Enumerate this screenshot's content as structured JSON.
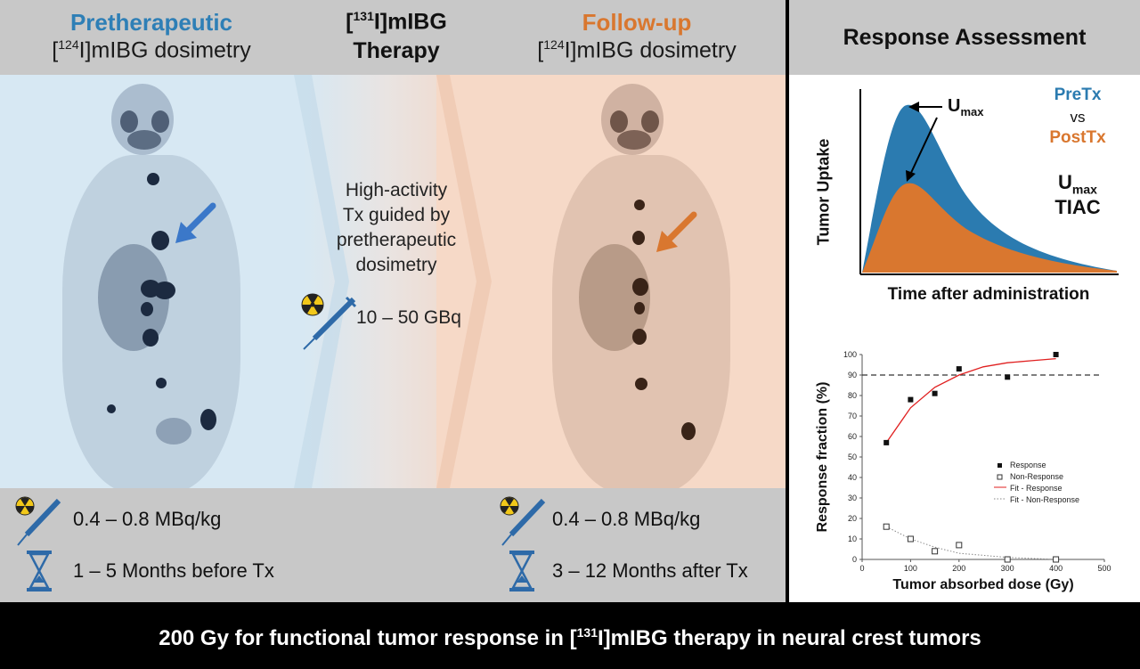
{
  "left_header": {
    "pre_title": "Pretherapeutic",
    "pre_sub_prefix": "[",
    "pre_sub_iso": "124",
    "pre_sub_rest": "I]mIBG dosimetry",
    "therapy_prefix": "[",
    "therapy_iso": "131",
    "therapy_rest": "I]mIBG",
    "therapy_line2": "Therapy",
    "follow_title": "Follow-up",
    "follow_sub_prefix": "[",
    "follow_sub_iso": "124",
    "follow_sub_rest": "I]mIBG dosimetry"
  },
  "center": {
    "line1": "High-activity",
    "line2": "Tx guided by",
    "line3": "pretherapeutic",
    "line4": "dosimetry",
    "activity": "10 – 50 GBq"
  },
  "pre_info": {
    "dose": "0.4 – 0.8 MBq/kg",
    "timing": "1 – 5 Months before Tx"
  },
  "follow_info": {
    "dose": "0.4 – 0.8 MBq/kg",
    "timing": "3 – 12 Months after Tx"
  },
  "right": {
    "title": "Response Assessment",
    "curve": {
      "ylabel": "Tumor Uptake",
      "xlabel": "Time after administration",
      "umax_label": "U",
      "umax_sub": "max",
      "pretx": "PreTx",
      "vs": "vs",
      "posttx": "PostTx",
      "umax2_label": "U",
      "umax2_sub": "max",
      "tiac": "TIAC"
    }
  },
  "footer": {
    "prefix": "200 Gy for functional tumor response in [",
    "iso": "131",
    "rest": "I]mIBG therapy in neural crest tumors"
  },
  "colors": {
    "pre_blue": "#2e7fb6",
    "follow_orange": "#d9772f",
    "curve_blue": "#2b7bb0",
    "curve_orange": "#d9772f"
  },
  "icons": [
    "radiation-syringe-icon",
    "hourglass-icon",
    "blue-arrow-icon",
    "orange-arrow-icon"
  ],
  "chart_data": {
    "type": "scatter",
    "xlabel": "Tumor absorbed dose (Gy)",
    "ylabel": "Response fraction (%)",
    "xlim": [
      0,
      500
    ],
    "ylim": [
      0,
      100
    ],
    "xticks": [
      0,
      100,
      200,
      300,
      400,
      500
    ],
    "yticks": [
      0,
      10,
      20,
      30,
      40,
      50,
      60,
      70,
      80,
      90,
      100
    ],
    "reference_line_y": 90,
    "series": [
      {
        "name": "Response",
        "x": [
          50,
          100,
          150,
          200,
          300,
          400
        ],
        "y": [
          57,
          78,
          81,
          93,
          89,
          100
        ]
      },
      {
        "name": "Non-Response",
        "x": [
          50,
          100,
          150,
          200,
          300,
          400
        ],
        "y": [
          16,
          10,
          4,
          7,
          0,
          0
        ]
      },
      {
        "name": "Fit - Response",
        "x": [
          50,
          100,
          150,
          200,
          250,
          300,
          350,
          400
        ],
        "y": [
          57,
          74,
          84,
          90,
          94,
          96,
          97,
          98
        ]
      },
      {
        "name": "Fit - Non-Response",
        "x": [
          50,
          100,
          150,
          200,
          250,
          300,
          350,
          400
        ],
        "y": [
          16,
          10,
          6,
          3,
          2,
          1,
          0.5,
          0
        ]
      }
    ]
  }
}
